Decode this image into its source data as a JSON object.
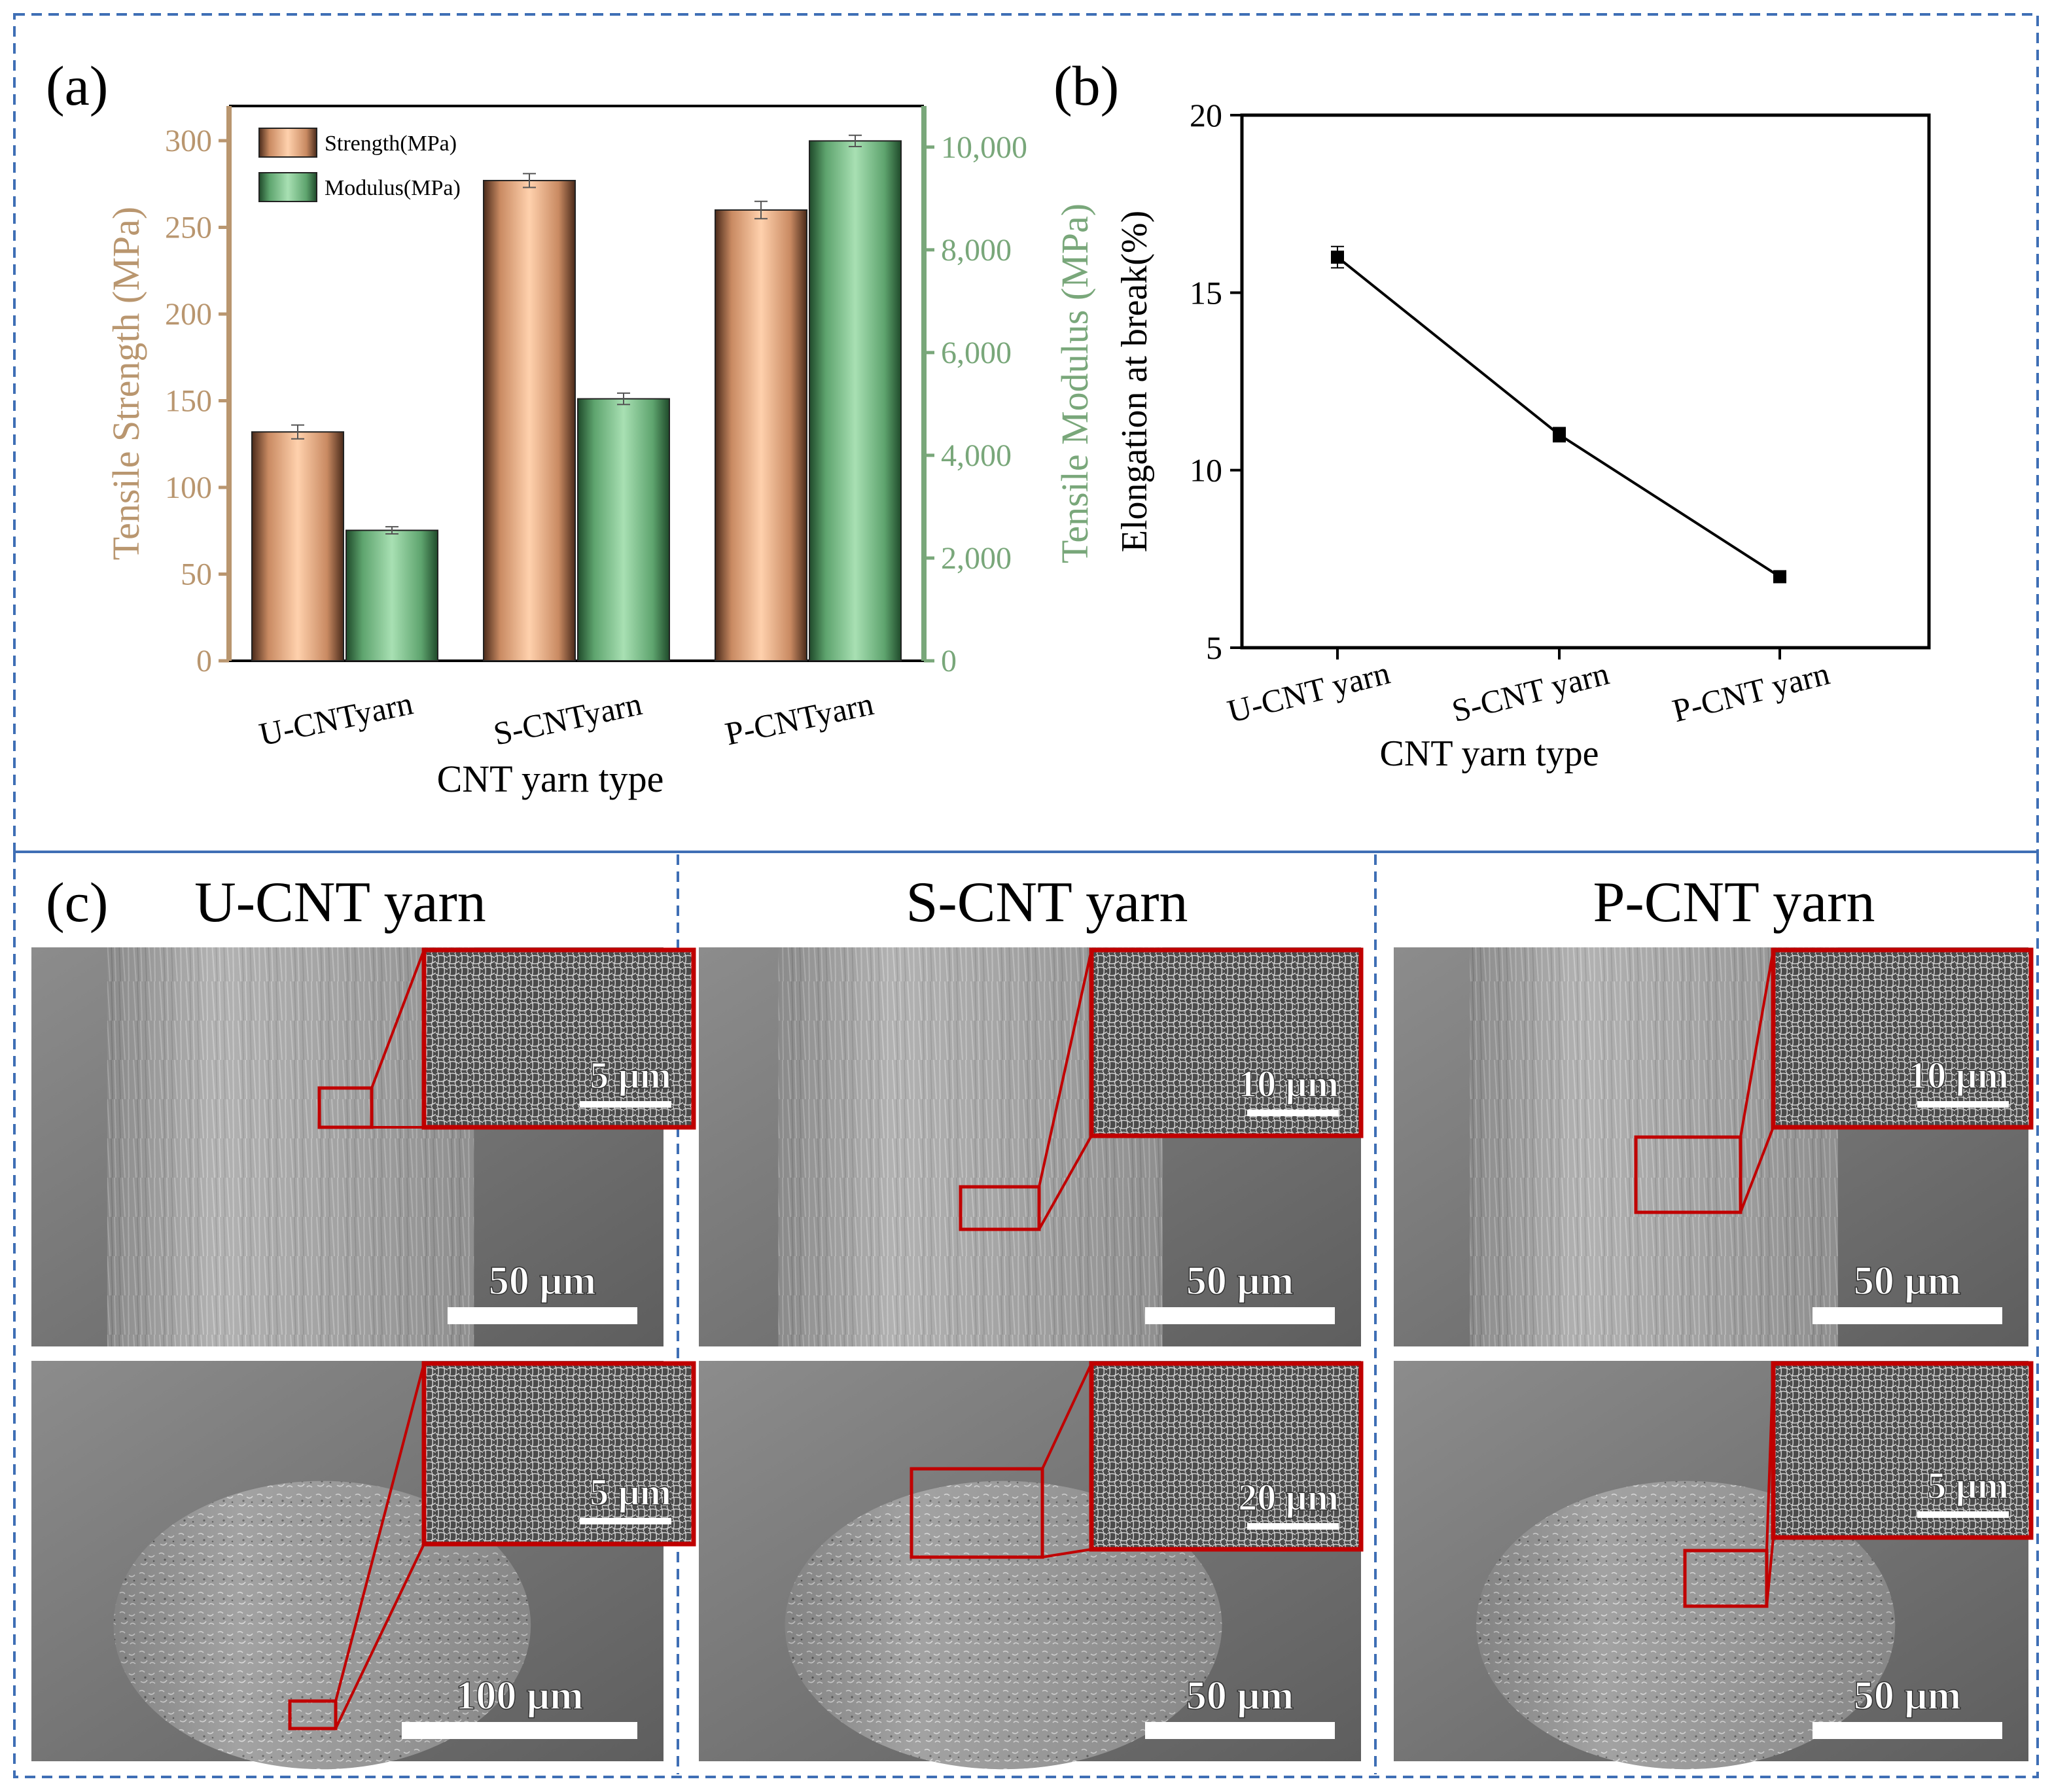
{
  "panel_labels": {
    "a": "(a)",
    "b": "(b)",
    "c": "(c)"
  },
  "colors": {
    "strength_fill": "#f4b183",
    "modulus_fill": "#82c38f",
    "strength_axis": "#b9966f",
    "modulus_axis": "#79a77a",
    "frame_dash": "#3f6fb5",
    "zoom_box": "#c00000"
  },
  "chart_data": [
    {
      "type": "bar",
      "panel": "a",
      "categories": [
        "U-CNTyarn",
        "S-CNTyarn",
        "P-CNTyarn"
      ],
      "series": [
        {
          "name": "Strength(MPa)",
          "axis": "left",
          "values": [
            132,
            277,
            260
          ],
          "errors": [
            4,
            4,
            5
          ]
        },
        {
          "name": "Modulus(MPa)",
          "axis": "right",
          "values": [
            2540,
            5100,
            10120
          ],
          "errors": [
            70,
            110,
            110
          ]
        }
      ],
      "xlabel": "CNT yarn type",
      "ylabel": "Tensile Strength (MPa)",
      "ylabel_right": "Tensile Modulus (MPa)",
      "ylim": [
        0,
        320
      ],
      "ylim_right": [
        0,
        10800
      ],
      "yticks": [
        "0",
        "50",
        "100",
        "150",
        "200",
        "250",
        "300"
      ],
      "yticks_right": [
        "0",
        "2,000",
        "4,000",
        "6,000",
        "8,000",
        "10,000"
      ],
      "legend": "top-left",
      "grid": false
    },
    {
      "type": "line",
      "panel": "b",
      "categories": [
        "U-CNT yarn",
        "S-CNT yarn",
        "P-CNT yarn"
      ],
      "values": [
        16.0,
        11.0,
        7.0
      ],
      "errors": [
        0.3,
        0.2,
        0.1
      ],
      "xlabel": "CNT yarn type",
      "ylabel": "Elongation at break(%)",
      "ylim": [
        5,
        20
      ],
      "yticks": [
        "5",
        "10",
        "15",
        "20"
      ],
      "grid": false
    }
  ],
  "sem": {
    "columns": [
      {
        "title": "U-CNT yarn",
        "top_scale": "50 μm",
        "top_inset_scale": "5 μm",
        "bottom_scale": "100 μm",
        "bottom_inset_scale": "5 μm"
      },
      {
        "title": "S-CNT yarn",
        "top_scale": "50 μm",
        "top_inset_scale": "10 μm",
        "bottom_scale": "50 μm",
        "bottom_inset_scale": "20 μm"
      },
      {
        "title": "P-CNT yarn",
        "top_scale": "50 μm",
        "top_inset_scale": "10 μm",
        "bottom_scale": "50 μm",
        "bottom_inset_scale": "5 μm"
      }
    ]
  }
}
